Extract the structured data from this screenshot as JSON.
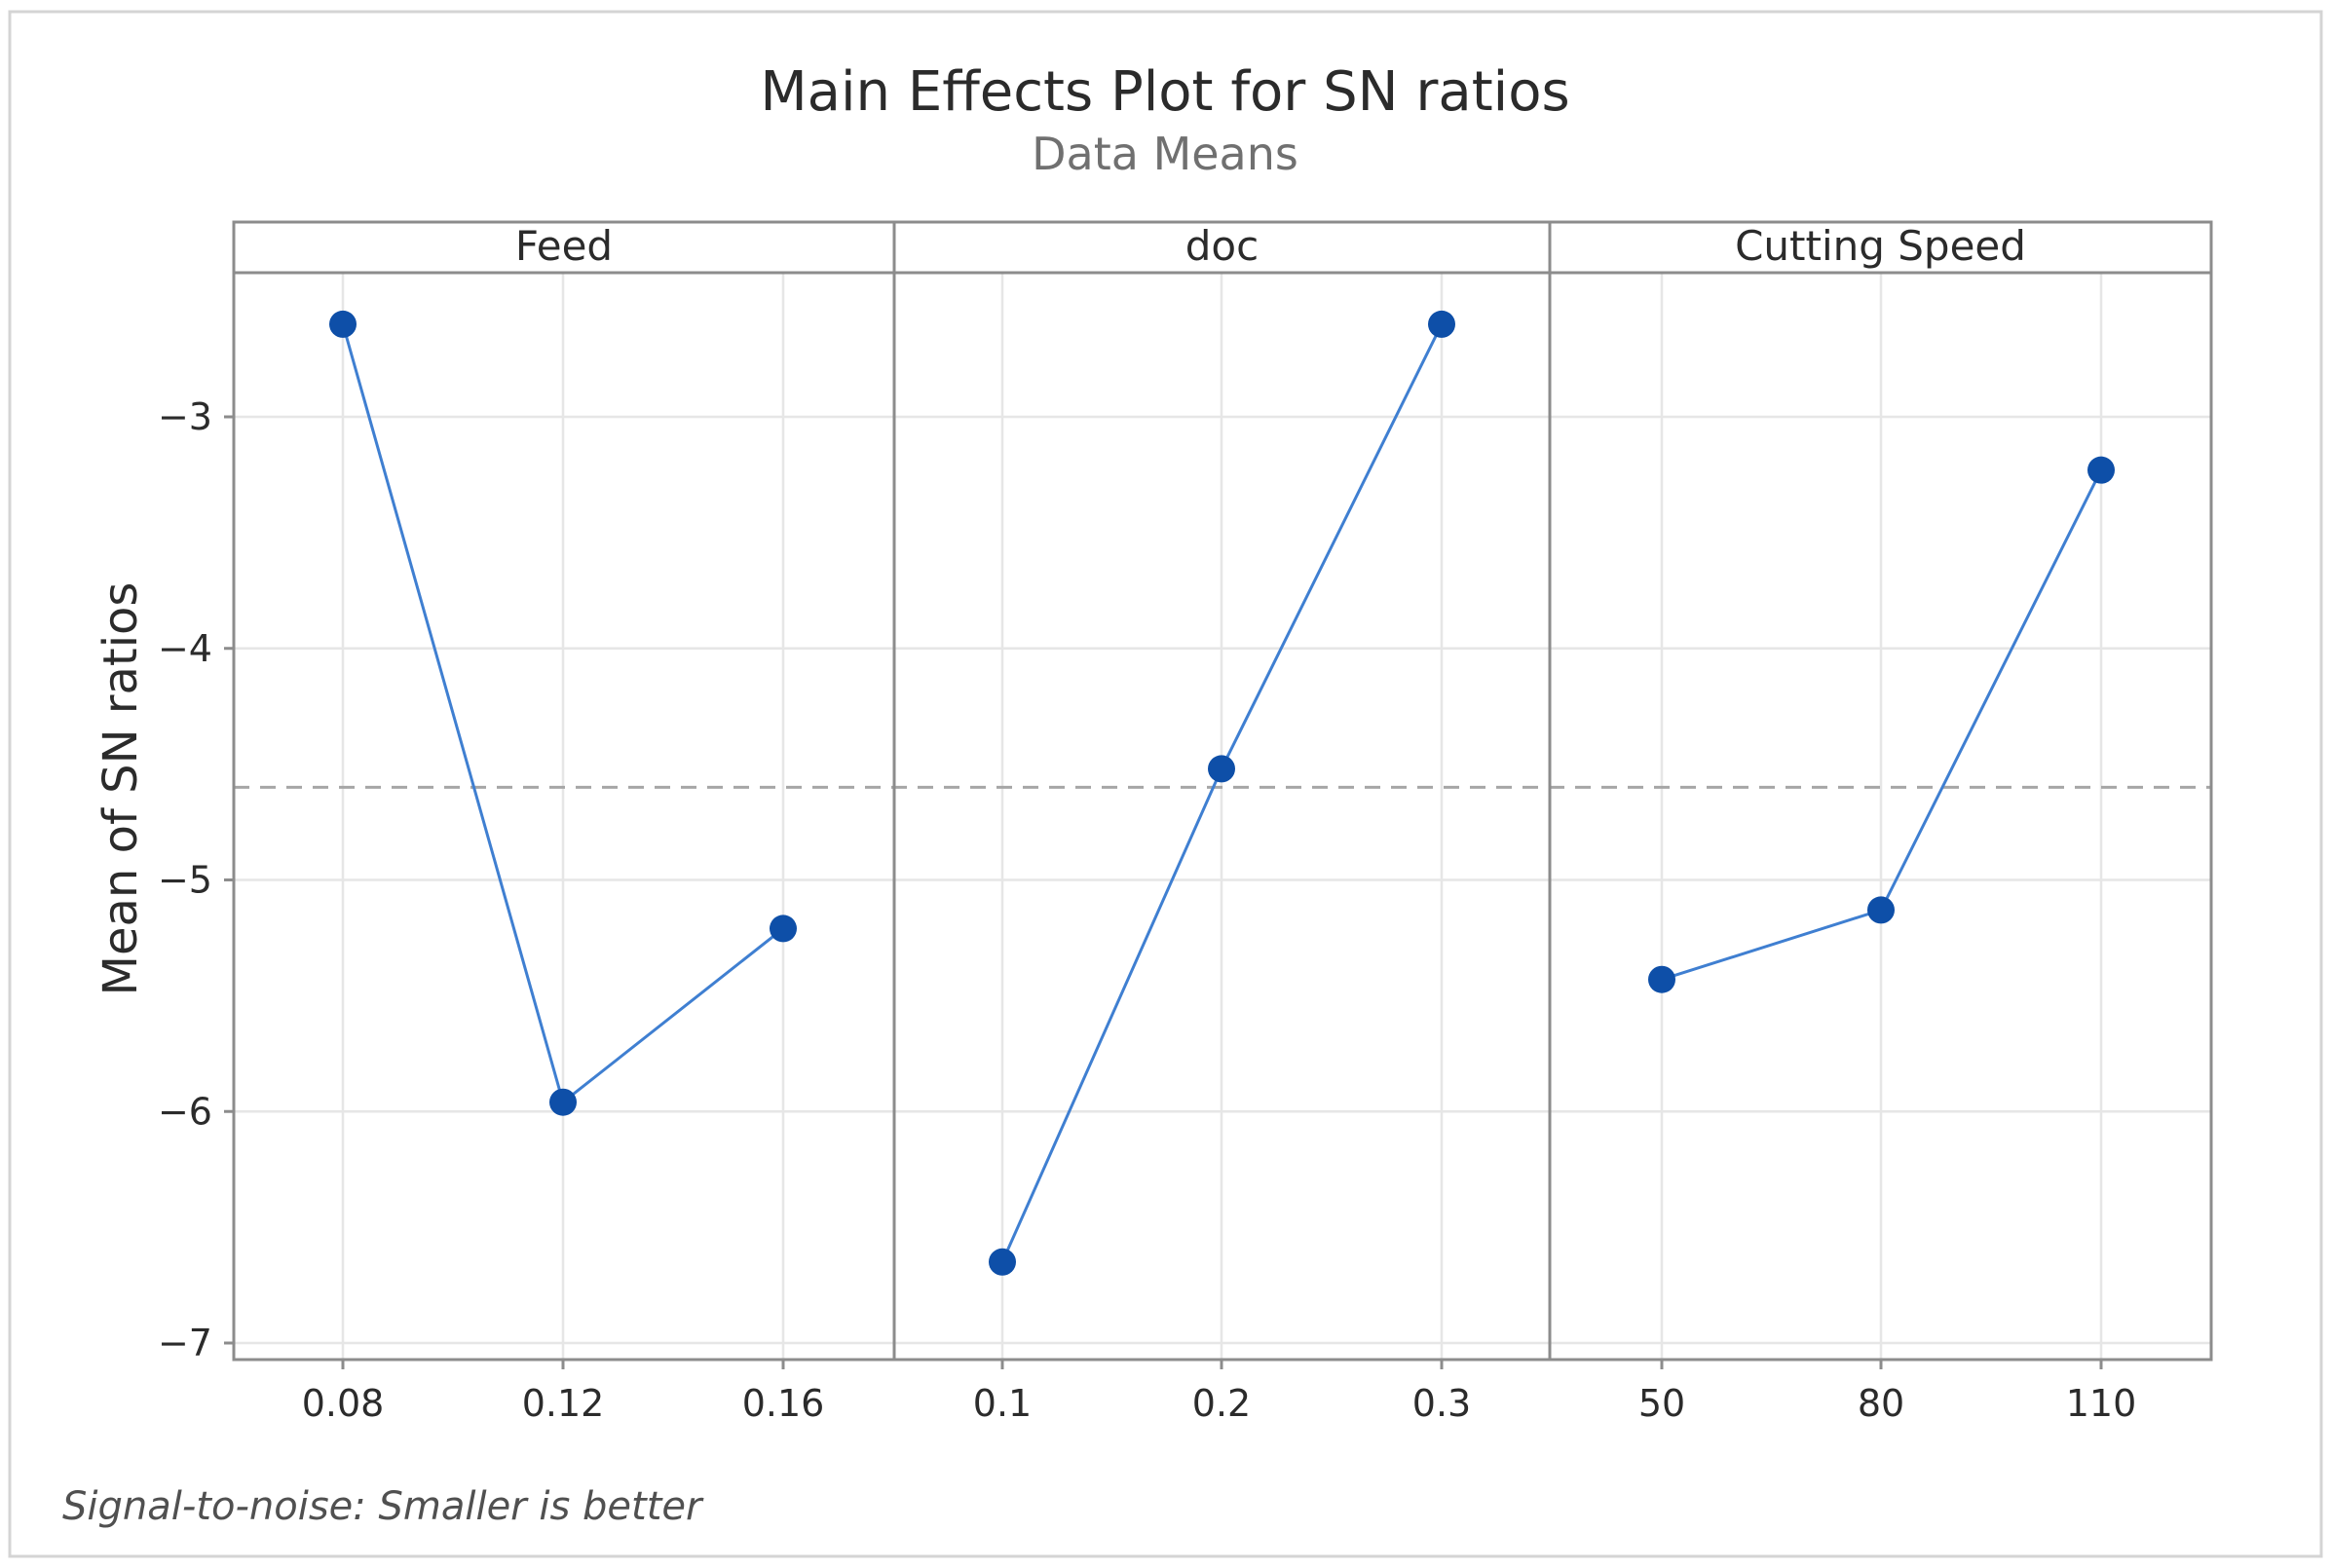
{
  "chart_data": {
    "type": "line",
    "title": "Main Effects Plot for SN ratios",
    "subtitle": "Data Means",
    "ylabel": "Mean of SN ratios",
    "ylim": [
      -7.07,
      -2.3
    ],
    "yticks": [
      -3,
      -4,
      -5,
      -6,
      -7
    ],
    "ytick_labels": [
      "−3",
      "−4",
      "−5",
      "−6",
      "−7"
    ],
    "reference_line": {
      "value": -4.6,
      "style": "dashed"
    },
    "grid": true,
    "marker_color": "#0e4fa8",
    "line_color": "#3f7fd1",
    "panels": [
      {
        "factor": "Feed",
        "levels": [
          "0.08",
          "0.12",
          "0.16"
        ],
        "values": [
          -2.6,
          -5.96,
          -5.21
        ]
      },
      {
        "factor": "doc",
        "levels": [
          "0.1",
          "0.2",
          "0.3"
        ],
        "values": [
          -6.65,
          -4.52,
          -2.6
        ]
      },
      {
        "factor": "Cutting Speed",
        "levels": [
          "50",
          "80",
          "110"
        ],
        "values": [
          -5.43,
          -5.13,
          -3.23
        ]
      }
    ],
    "footnote": "Signal-to-noise: Smaller is better"
  }
}
